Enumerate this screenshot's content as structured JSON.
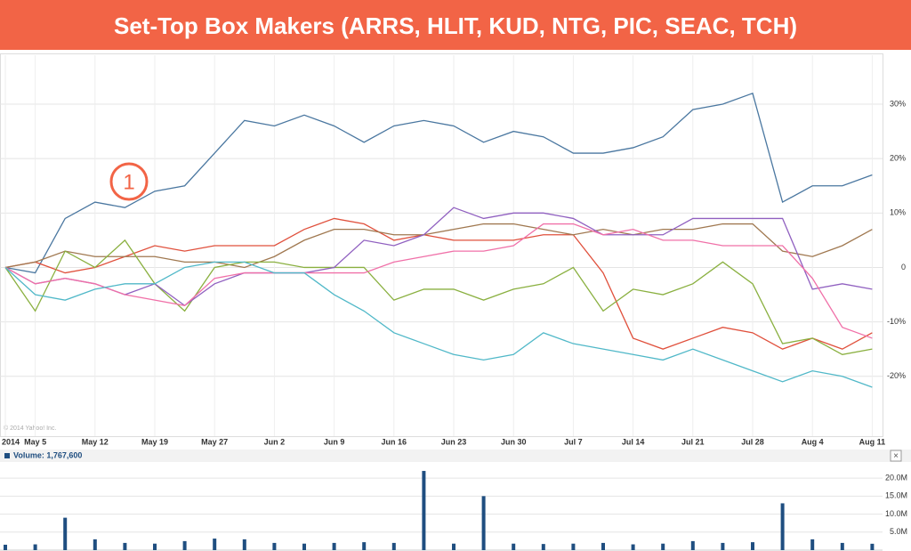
{
  "title": "Set-Top Box Makers (ARRS, HLIT, KUD, NTG, PIC, SEAC, TCH)",
  "chart_data": [
    {
      "type": "line",
      "annotation": "1",
      "source": "© 2014 Yahoo! Inc.",
      "categories": [
        "2014",
        "May 5",
        null,
        "May 12",
        null,
        "May 19",
        null,
        "May 27",
        null,
        "Jun 2",
        null,
        "Jun 9",
        null,
        "Jun 16",
        null,
        "Jun 23",
        null,
        "Jun 30",
        null,
        "Jul 7",
        null,
        "Jul 14",
        null,
        "Jul 21",
        null,
        "Jul 28",
        null,
        "Aug 4",
        null,
        "Aug 11"
      ],
      "ylim": [
        -31,
        39
      ],
      "yticks": [
        {
          "value": -20,
          "label": "-20%"
        },
        {
          "value": -10,
          "label": "-10%"
        },
        0,
        {
          "value": 10,
          "label": "10%"
        },
        {
          "value": 20,
          "label": "20%"
        },
        {
          "value": 30,
          "label": "30%"
        }
      ],
      "grid": true,
      "series": [
        {
          "color": "#4a77a0",
          "values": [
            0,
            -1,
            9,
            12,
            11,
            14,
            15,
            21,
            27,
            26,
            28,
            26,
            23,
            26,
            27,
            26,
            23,
            25,
            24,
            21,
            21,
            22,
            24,
            29,
            30,
            32,
            12,
            15,
            15,
            17
          ]
        },
        {
          "color": "#e0503c",
          "values": [
            0,
            1,
            -1,
            0,
            2,
            4,
            3,
            4,
            4,
            4,
            7,
            9,
            8,
            5,
            6,
            5,
            5,
            5,
            6,
            6,
            -1,
            -13,
            -15,
            -13,
            -11,
            -12,
            -15,
            -13,
            -15,
            -12
          ]
        },
        {
          "color": "#a07850",
          "values": [
            0,
            1,
            3,
            2,
            2,
            2,
            1,
            1,
            0,
            2,
            5,
            7,
            7,
            6,
            6,
            7,
            8,
            8,
            7,
            6,
            7,
            6,
            7,
            7,
            8,
            8,
            3,
            2,
            4,
            7
          ]
        },
        {
          "color": "#8ab040",
          "values": [
            0,
            -8,
            3,
            0,
            5,
            -3,
            -8,
            0,
            1,
            1,
            0,
            0,
            0,
            -6,
            -4,
            -4,
            -6,
            -4,
            -3,
            0,
            -8,
            -4,
            -5,
            -3,
            1,
            -3,
            -14,
            -13,
            -16,
            -15
          ]
        },
        {
          "color": "#9060c0",
          "values": [
            0,
            -3,
            -2,
            -3,
            -5,
            -3,
            -7,
            -3,
            -1,
            -1,
            -1,
            0,
            5,
            4,
            6,
            11,
            9,
            10,
            10,
            9,
            6,
            6,
            6,
            9,
            9,
            9,
            9,
            -4,
            -3,
            -4
          ]
        },
        {
          "color": "#f070a8",
          "values": [
            0,
            -3,
            -2,
            -3,
            -5,
            -6,
            -7,
            -2,
            -1,
            -1,
            -1,
            -1,
            -1,
            1,
            2,
            3,
            3,
            4,
            8,
            8,
            6,
            7,
            5,
            5,
            4,
            4,
            4,
            -2,
            -11,
            -13
          ]
        },
        {
          "color": "#50b8c8",
          "values": [
            0,
            -5,
            -6,
            -4,
            -3,
            -3,
            0,
            1,
            1,
            -1,
            -1,
            -5,
            -8,
            -12,
            -14,
            -16,
            -17,
            -16,
            -12,
            -14,
            -15,
            -16,
            -17,
            -15,
            -17,
            -19,
            -21,
            -19,
            -20,
            -22
          ]
        }
      ]
    },
    {
      "type": "bar",
      "title": "Volume: 1,767,600",
      "color": "#1f4e80",
      "ylim": [
        0,
        23000000
      ],
      "yticks": [
        {
          "value": 5000000,
          "label": "5.0M"
        },
        {
          "value": 10000000,
          "label": "10.0M"
        },
        {
          "value": 15000000,
          "label": "15.0M"
        },
        {
          "value": 20000000,
          "label": "20.0M"
        }
      ],
      "values": [
        1500000,
        1600000,
        9000000,
        3000000,
        2000000,
        1800000,
        2500000,
        3200000,
        3000000,
        2000000,
        1800000,
        2000000,
        2200000,
        2000000,
        22000000,
        1800000,
        15000000,
        1800000,
        1700000,
        1800000,
        2000000,
        1600000,
        1800000,
        2500000,
        2000000,
        2200000,
        13000000,
        3000000,
        2000000,
        1767600
      ]
    }
  ]
}
